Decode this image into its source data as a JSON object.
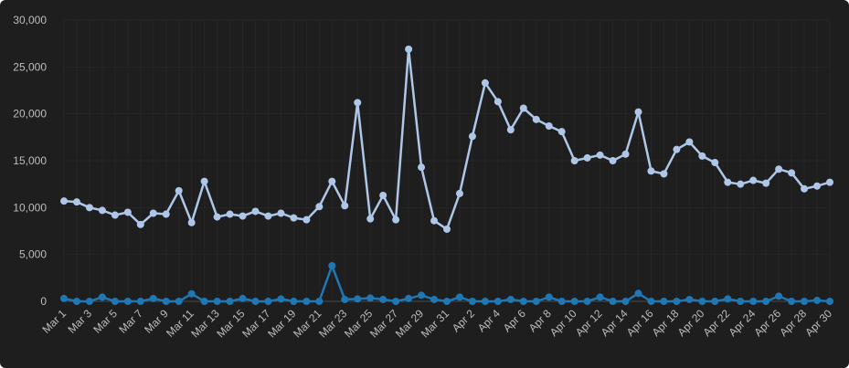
{
  "chart_data": {
    "type": "line",
    "title": "",
    "xlabel": "",
    "ylabel": "",
    "ylim": [
      0,
      30000
    ],
    "yticks": [
      0,
      5000,
      10000,
      15000,
      20000,
      25000,
      30000
    ],
    "ytick_labels": [
      "0",
      "5,000",
      "10,000",
      "15,000",
      "20,000",
      "25,000",
      "30,000"
    ],
    "xtick_labels": [
      "Mar 1",
      "Mar 3",
      "Mar 5",
      "Mar 7",
      "Mar 9",
      "Mar 11",
      "Mar 13",
      "Mar 15",
      "Mar 17",
      "Mar 19",
      "Mar 21",
      "Mar 23",
      "Mar 25",
      "Mar 27",
      "Mar 29",
      "Mar 31",
      "Apr 2",
      "Apr 4",
      "Apr 6",
      "Apr 8",
      "Apr 10",
      "Apr 12",
      "Apr 14",
      "Apr 16",
      "Apr 18",
      "Apr 20",
      "Apr 22",
      "Apr 24",
      "Apr 26",
      "Apr 28",
      "Apr 30"
    ],
    "grid": true,
    "legend": "none",
    "categories": [
      "Mar 1",
      "Mar 2",
      "Mar 3",
      "Mar 4",
      "Mar 5",
      "Mar 6",
      "Mar 7",
      "Mar 8",
      "Mar 9",
      "Mar 10",
      "Mar 11",
      "Mar 12",
      "Mar 13",
      "Mar 14",
      "Mar 15",
      "Mar 16",
      "Mar 17",
      "Mar 18",
      "Mar 19",
      "Mar 20",
      "Mar 21",
      "Mar 22",
      "Mar 23",
      "Mar 24",
      "Mar 25",
      "Mar 26",
      "Mar 27",
      "Mar 28",
      "Mar 29",
      "Mar 30",
      "Mar 31",
      "Apr 1",
      "Apr 2",
      "Apr 3",
      "Apr 4",
      "Apr 5",
      "Apr 6",
      "Apr 7",
      "Apr 8",
      "Apr 9",
      "Apr 10",
      "Apr 11",
      "Apr 12",
      "Apr 13",
      "Apr 14",
      "Apr 15",
      "Apr 16",
      "Apr 17",
      "Apr 18",
      "Apr 19",
      "Apr 20",
      "Apr 21",
      "Apr 22",
      "Apr 23",
      "Apr 24",
      "Apr 25",
      "Apr 26",
      "Apr 27",
      "Apr 28",
      "Apr 29",
      "Apr 30"
    ],
    "series": [
      {
        "color": "#aec7e8",
        "values": [
          10700,
          10600,
          10000,
          9700,
          9200,
          9500,
          8200,
          9400,
          9300,
          11800,
          8400,
          12800,
          9000,
          9300,
          9100,
          9600,
          9100,
          9400,
          8900,
          8700,
          10100,
          12800,
          10200,
          21200,
          8800,
          11300,
          8700,
          26900,
          14300,
          8600,
          7700,
          11500,
          17600,
          23300,
          21300,
          18300,
          20600,
          19400,
          18700,
          18100,
          15000,
          15300,
          15600,
          15000,
          15700,
          20200,
          13900,
          13600,
          16200,
          17000,
          15500,
          14800,
          12700,
          12500,
          12900,
          12600,
          14100,
          13700,
          12000,
          12300,
          12700
        ]
      },
      {
        "color": "#1f77b4",
        "values": [
          300,
          0,
          0,
          450,
          0,
          0,
          0,
          300,
          0,
          0,
          800,
          0,
          0,
          0,
          300,
          0,
          0,
          250,
          0,
          0,
          0,
          3800,
          200,
          250,
          350,
          200,
          0,
          300,
          650,
          200,
          0,
          450,
          0,
          0,
          0,
          200,
          0,
          0,
          450,
          0,
          0,
          0,
          450,
          0,
          0,
          850,
          0,
          0,
          0,
          200,
          0,
          0,
          250,
          0,
          0,
          0,
          550,
          0,
          0,
          100,
          0
        ]
      }
    ]
  }
}
